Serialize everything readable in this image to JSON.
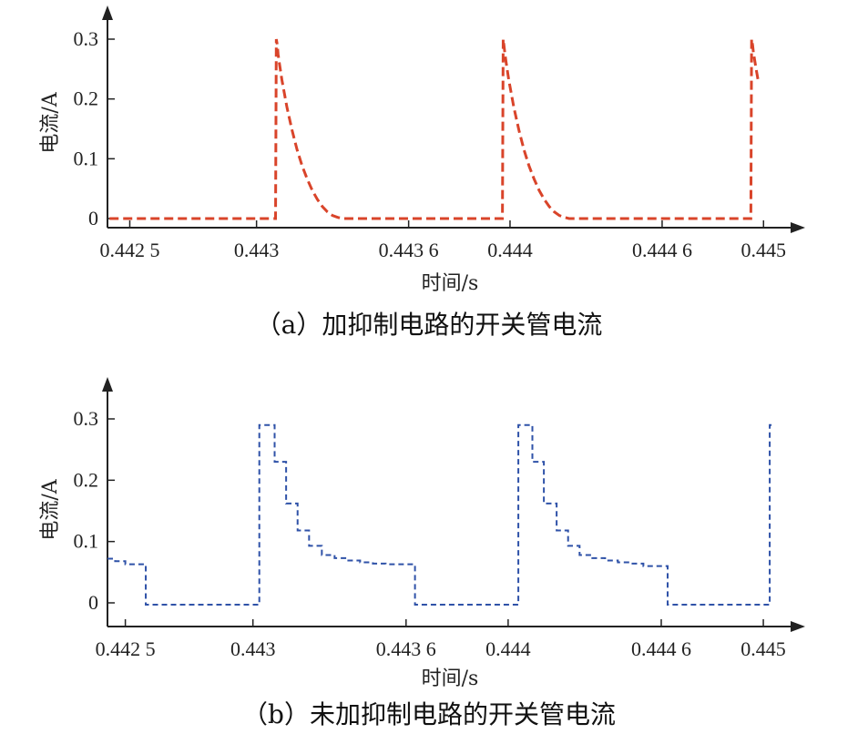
{
  "chart_data": [
    {
      "type": "line",
      "caption": "（a）加抑制电路的开关管电流",
      "xlabel": "时间/s",
      "ylabel": "电流/A",
      "x_ticks": [
        0.4425,
        0.443,
        0.4436,
        0.444,
        0.4446,
        0.445
      ],
      "x_tick_labels": [
        "0.442 5",
        "0.443",
        "0.443 6",
        "0.444",
        "0.444 6",
        "0.445"
      ],
      "y_ticks": [
        0,
        0.1,
        0.2,
        0.3
      ],
      "y_tick_labels": [
        "0",
        "0.1",
        "0.2",
        "0.3"
      ],
      "xlim": [
        0.442412,
        0.445114
      ],
      "ylim": [
        -0.015,
        0.33
      ],
      "grid": false,
      "series": [
        {
          "color": "#d9442a",
          "line_style": "dashed",
          "x": [
            0.44242,
            0.443075,
            0.443078,
            0.443082,
            0.443085,
            0.44309,
            0.4431,
            0.44312,
            0.44314,
            0.44316,
            0.44318,
            0.4432,
            0.44322,
            0.44324,
            0.44326,
            0.44328,
            0.4433,
            0.44332,
            0.44334,
            0.4433554,
            0.44397,
            0.443973,
            0.443976,
            0.44398,
            0.443985,
            0.443995,
            0.444015,
            0.444035,
            0.444055,
            0.444075,
            0.444095,
            0.444115,
            0.444135,
            0.444155,
            0.444175,
            0.444195,
            0.444215,
            0.444233,
            0.44495,
            0.444953,
            0.444957,
            0.44496,
            0.44497,
            0.44498
          ],
          "y": [
            0.0,
            0.0,
            0.3,
            0.29,
            0.275,
            0.26,
            0.232,
            0.186,
            0.148,
            0.115,
            0.088,
            0.066,
            0.047,
            0.032,
            0.02,
            0.011,
            0.005,
            0.002,
            0.0,
            0.0,
            0.0,
            0.3,
            0.29,
            0.275,
            0.26,
            0.232,
            0.186,
            0.148,
            0.115,
            0.088,
            0.066,
            0.047,
            0.032,
            0.02,
            0.011,
            0.005,
            0.002,
            0.0,
            0.0,
            0.3,
            0.29,
            0.278,
            0.252,
            0.228
          ]
        }
      ]
    },
    {
      "type": "line",
      "caption": "（b）未加抑制电路的开关管电流",
      "xlabel": "时间/s",
      "ylabel": "电流/A",
      "x_ticks": [
        0.4425,
        0.443,
        0.4436,
        0.444,
        0.4446,
        0.445
      ],
      "x_tick_labels": [
        "0.442 5",
        "0.443",
        "0.443 6",
        "0.444",
        "0.444 6",
        "0.445"
      ],
      "y_ticks": [
        0,
        0.1,
        0.2,
        0.3
      ],
      "y_tick_labels": [
        "0",
        "0.1",
        "0.2",
        "0.3"
      ],
      "xlim": [
        0.44243,
        0.445114
      ],
      "ylim": [
        -0.04,
        0.34
      ],
      "grid": false,
      "series": [
        {
          "color": "#2f52a8",
          "line_style": "dashed",
          "step": true,
          "x": [
            0.44243,
            0.44246,
            0.4425,
            0.44258,
            0.443025,
            0.443085,
            0.44313,
            0.443175,
            0.44322,
            0.44327,
            0.44332,
            0.44337,
            0.44342,
            0.44347,
            0.44352,
            0.44357,
            0.44361,
            0.443635,
            0.44404,
            0.444095,
            0.44414,
            0.44419,
            0.444235,
            0.44428,
            0.44433,
            0.44438,
            0.44443,
            0.44448,
            0.44453,
            0.444575,
            0.444625,
            0.445025,
            0.445034
          ],
          "y": [
            0.072,
            0.068,
            0.063,
            -0.003,
            0.29,
            0.23,
            0.162,
            0.118,
            0.093,
            0.078,
            0.073,
            0.069,
            0.066,
            0.064,
            0.063,
            0.063,
            0.063,
            -0.003,
            0.29,
            0.23,
            0.162,
            0.118,
            0.093,
            0.078,
            0.073,
            0.069,
            0.066,
            0.064,
            0.06,
            0.06,
            -0.003,
            0.29,
            0.29
          ]
        }
      ]
    }
  ]
}
